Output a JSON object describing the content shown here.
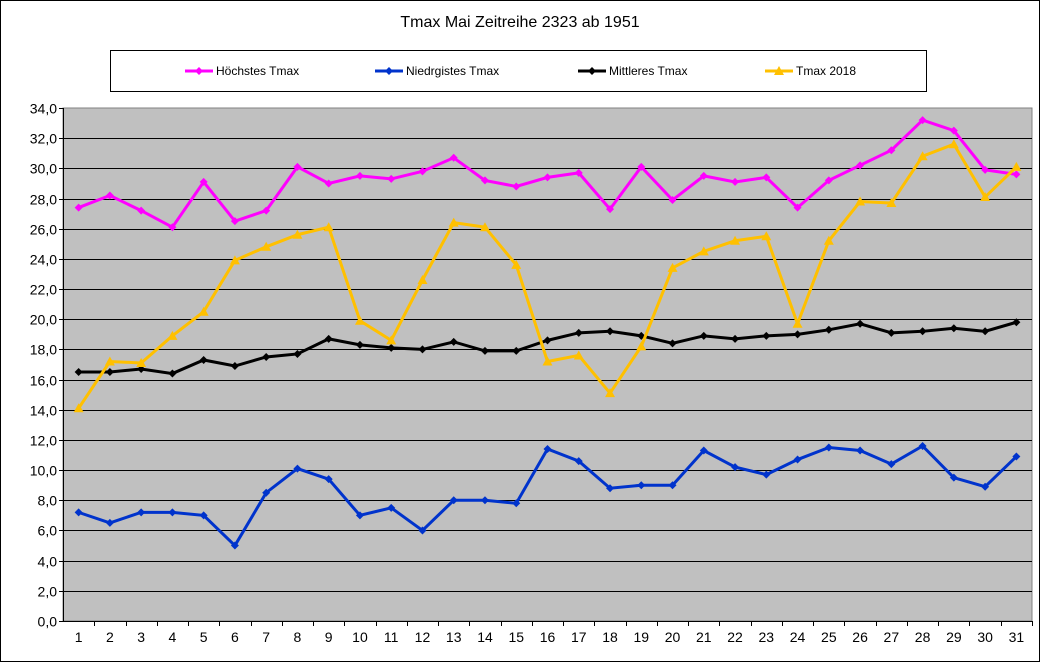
{
  "chart_data": {
    "type": "line",
    "title": "Tmax Mai  Zeitreihe 2323 ab 1951",
    "xlabel": "",
    "ylabel": "",
    "ylim": [
      0,
      34
    ],
    "ytick_step": 2,
    "ytick_labels": [
      "0,0",
      "2,0",
      "4,0",
      "6,0",
      "8,0",
      "10,0",
      "12,0",
      "14,0",
      "16,0",
      "18,0",
      "20,0",
      "22,0",
      "24,0",
      "26,0",
      "28,0",
      "30,0",
      "32,0",
      "34,0"
    ],
    "grid": true,
    "legend_position": "top",
    "categories": [
      "1",
      "2",
      "3",
      "4",
      "5",
      "6",
      "7",
      "8",
      "9",
      "10",
      "11",
      "12",
      "13",
      "14",
      "15",
      "16",
      "17",
      "18",
      "19",
      "20",
      "21",
      "22",
      "23",
      "24",
      "25",
      "26",
      "27",
      "28",
      "29",
      "30",
      "31"
    ],
    "series": [
      {
        "name": "Höchstes Tmax",
        "color": "#ff00ff",
        "marker": "diamond",
        "values": [
          27.4,
          28.2,
          27.2,
          26.1,
          29.1,
          26.5,
          27.2,
          30.1,
          29.0,
          29.5,
          29.3,
          29.8,
          30.7,
          29.2,
          28.8,
          29.4,
          29.7,
          27.3,
          30.1,
          27.9,
          29.5,
          29.1,
          29.4,
          27.4,
          29.2,
          30.2,
          31.2,
          33.2,
          32.5,
          29.9,
          29.6
        ]
      },
      {
        "name": "Niedrgistes Tmax",
        "color": "#0033cc",
        "marker": "diamond",
        "values": [
          7.2,
          6.5,
          7.2,
          7.2,
          7.0,
          5.0,
          8.5,
          10.1,
          9.4,
          7.0,
          7.5,
          6.0,
          8.0,
          8.0,
          7.8,
          11.4,
          10.6,
          8.8,
          9.0,
          9.0,
          11.3,
          10.2,
          9.7,
          10.7,
          11.5,
          11.3,
          10.4,
          11.6,
          9.5,
          8.9,
          10.9
        ]
      },
      {
        "name": "Mittleres Tmax",
        "color": "#000000",
        "marker": "diamond",
        "values": [
          16.5,
          16.5,
          16.7,
          16.4,
          17.3,
          16.9,
          17.5,
          17.7,
          18.7,
          18.3,
          18.1,
          18.0,
          18.5,
          17.9,
          17.9,
          18.6,
          19.1,
          19.2,
          18.9,
          18.4,
          18.9,
          18.7,
          18.9,
          19.0,
          19.3,
          19.7,
          19.1,
          19.2,
          19.4,
          19.2,
          19.8
        ]
      },
      {
        "name": "Tmax 2018",
        "color": "#ffc000",
        "marker": "triangle",
        "values": [
          14.1,
          17.2,
          17.1,
          18.9,
          20.5,
          23.9,
          24.8,
          25.6,
          26.1,
          19.9,
          18.6,
          22.6,
          26.4,
          26.1,
          23.6,
          17.2,
          17.6,
          15.1,
          18.2,
          23.4,
          24.5,
          25.2,
          25.5,
          19.7,
          25.2,
          27.8,
          27.7,
          30.8,
          31.6,
          28.1,
          30.1
        ]
      }
    ]
  }
}
